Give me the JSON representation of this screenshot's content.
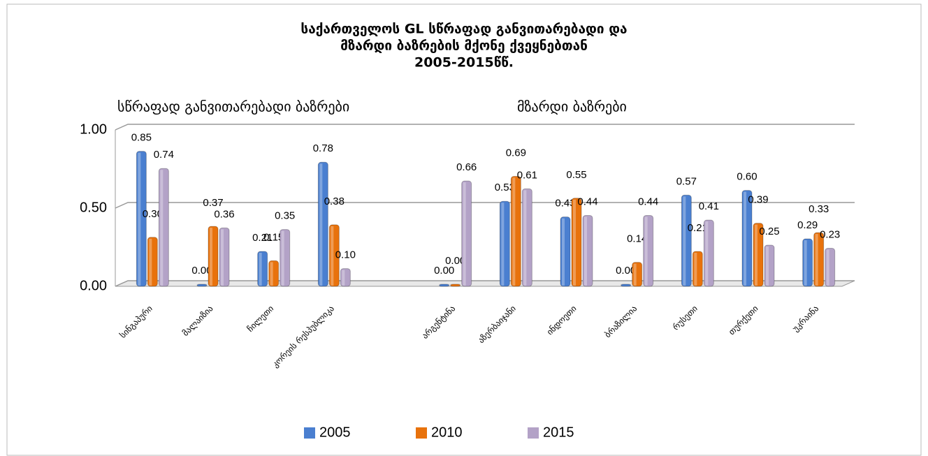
{
  "chart_data": {
    "type": "bar",
    "title": [
      "საქართველოს GL სწრაფად განვითარებადი და",
      "მზარდი ბაზრების მქონე ქვეყნებთან",
      "2005-2015წწ."
    ],
    "annotations": [
      "სწრაფად განვითარებადი ბაზრები",
      "მზარდი ბაზრები"
    ],
    "categories": [
      "სინგაპური",
      "მალაიზია",
      "ჩილეთი",
      "კორეის რესპუბლიკა",
      null,
      "არგენტინა",
      "აზერბაიჯანი",
      "ინდოეთი",
      "ბრაზილია",
      "რუსეთი",
      "თურქეთი",
      "უკრაინა"
    ],
    "series": [
      {
        "name": "2005",
        "color": "#4a7fd0",
        "values": [
          0.85,
          0,
          0.21,
          0.78,
          null,
          0,
          0.53,
          0.43,
          0,
          0.57,
          0.6,
          0.29
        ],
        "value_labels": [
          "0.85",
          "0.00",
          "0.21",
          "0.78",
          null,
          "0.00",
          "0.53",
          "0.43",
          "0.00",
          "0.57",
          "0.60",
          "0.29"
        ]
      },
      {
        "name": "2010",
        "color": "#e8720c",
        "values": [
          0.3,
          0.37,
          0.15,
          0.38,
          null,
          0,
          0.69,
          0.55,
          0.14,
          0.21,
          0.39,
          0.33
        ],
        "value_labels": [
          "0.30",
          "0.37",
          "0.15",
          "0.38",
          null,
          "0.00",
          "0.69",
          "0.55",
          "0.14",
          "0.21",
          "0.39",
          "0.33"
        ]
      },
      {
        "name": "2015",
        "color": "#b3a2c7",
        "values": [
          0.74,
          0.36,
          0.35,
          0.1,
          null,
          0.66,
          0.61,
          0.44,
          0.44,
          0.41,
          0.25,
          0.23
        ],
        "value_labels": [
          "0.74",
          "0.36",
          "0.35",
          "0.10",
          null,
          "0.66",
          "0.61",
          "0.44",
          "0.44",
          "0.41",
          "0.25",
          "0.23"
        ]
      }
    ],
    "ylim": [
      0,
      1
    ],
    "yticks": [
      {
        "value": 0,
        "label": "0.00"
      },
      {
        "value": 0.5,
        "label": "0.50"
      },
      {
        "value": 1,
        "label": "1.00"
      }
    ],
    "grid": true,
    "legend": "bottom"
  }
}
